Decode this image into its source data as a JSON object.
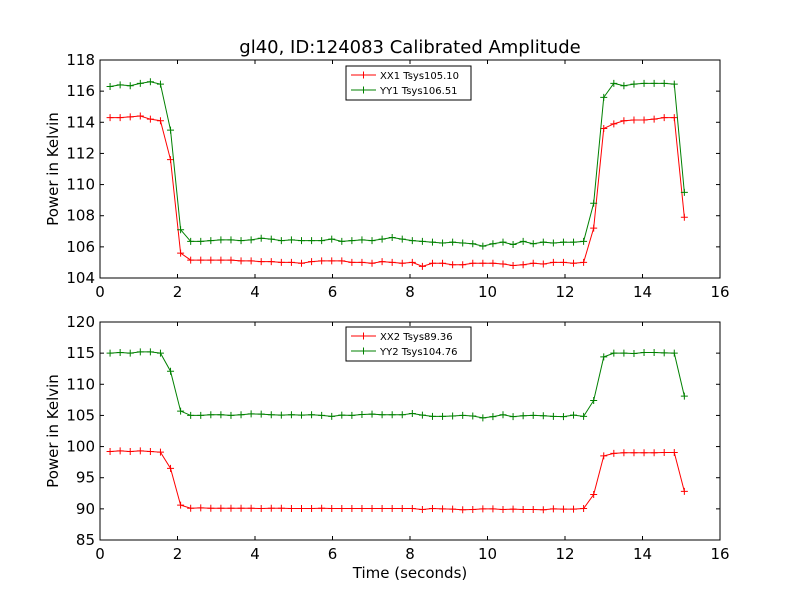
{
  "chart_data": [
    {
      "type": "line",
      "title": "gl40, ID:124083 Calibrated Amplitude",
      "xlabel": "",
      "ylabel": "Power in Kelvin",
      "xlim": [
        0,
        16
      ],
      "ylim": [
        104,
        118
      ],
      "xticks": [
        "0",
        "2",
        "4",
        "6",
        "8",
        "10",
        "12",
        "14",
        "16"
      ],
      "yticks": [
        "104",
        "106",
        "108",
        "110",
        "112",
        "114",
        "116",
        "118"
      ],
      "legend_position": "top-center",
      "x": [
        0.26,
        0.52,
        0.78,
        1.04,
        1.3,
        1.56,
        1.82,
        2.08,
        2.34,
        2.6,
        2.86,
        3.12,
        3.38,
        3.64,
        3.9,
        4.16,
        4.42,
        4.68,
        4.94,
        5.2,
        5.46,
        5.72,
        5.98,
        6.24,
        6.5,
        6.76,
        7.02,
        7.28,
        7.54,
        7.8,
        8.06,
        8.32,
        8.58,
        8.84,
        9.1,
        9.36,
        9.62,
        9.88,
        10.14,
        10.4,
        10.66,
        10.92,
        11.18,
        11.44,
        11.7,
        11.96,
        12.22,
        12.48,
        12.74,
        13.0,
        13.26,
        13.52,
        13.78,
        14.04,
        14.3,
        14.56,
        14.82,
        15.08
      ],
      "series": [
        {
          "name": "XX1 Tsys105.10",
          "color": "#ff0000",
          "values": [
            114.3,
            114.3,
            114.35,
            114.4,
            114.2,
            114.1,
            111.6,
            105.6,
            105.15,
            105.15,
            105.15,
            105.15,
            105.15,
            105.1,
            105.1,
            105.05,
            105.05,
            105.0,
            105.0,
            104.95,
            105.05,
            105.1,
            105.1,
            105.1,
            105.0,
            105.0,
            104.95,
            105.05,
            105.0,
            104.95,
            105.0,
            104.75,
            104.95,
            104.95,
            104.85,
            104.85,
            104.95,
            104.95,
            104.95,
            104.9,
            104.8,
            104.85,
            104.95,
            104.9,
            105.0,
            105.0,
            104.95,
            105.0,
            107.2,
            113.6,
            113.9,
            114.1,
            114.15,
            114.15,
            114.2,
            114.3,
            114.3,
            107.9
          ]
        },
        {
          "name": "YY1 Tsys106.51",
          "color": "#008000",
          "values": [
            116.3,
            116.4,
            116.35,
            116.5,
            116.6,
            116.45,
            113.5,
            107.1,
            106.35,
            106.35,
            106.4,
            106.45,
            106.45,
            106.4,
            106.45,
            106.55,
            106.5,
            106.4,
            106.45,
            106.4,
            106.4,
            106.4,
            106.5,
            106.35,
            106.4,
            106.45,
            106.4,
            106.5,
            106.6,
            106.5,
            106.4,
            106.35,
            106.3,
            106.25,
            106.3,
            106.25,
            106.2,
            106.05,
            106.2,
            106.3,
            106.15,
            106.35,
            106.2,
            106.3,
            106.25,
            106.3,
            106.3,
            106.35,
            108.8,
            115.6,
            116.5,
            116.35,
            116.45,
            116.5,
            116.5,
            116.5,
            116.45,
            109.5
          ]
        }
      ]
    },
    {
      "type": "line",
      "title": "",
      "xlabel": "Time (seconds)",
      "ylabel": "Power in Kelvin",
      "xlim": [
        0,
        16
      ],
      "ylim": [
        85,
        120
      ],
      "xticks": [
        "0",
        "2",
        "4",
        "6",
        "8",
        "10",
        "12",
        "14",
        "16"
      ],
      "yticks": [
        "85",
        "90",
        "95",
        "100",
        "105",
        "110",
        "115",
        "120"
      ],
      "legend_position": "top-center",
      "x": [
        0.26,
        0.52,
        0.78,
        1.04,
        1.3,
        1.56,
        1.82,
        2.08,
        2.34,
        2.6,
        2.86,
        3.12,
        3.38,
        3.64,
        3.9,
        4.16,
        4.42,
        4.68,
        4.94,
        5.2,
        5.46,
        5.72,
        5.98,
        6.24,
        6.5,
        6.76,
        7.02,
        7.28,
        7.54,
        7.8,
        8.06,
        8.32,
        8.58,
        8.84,
        9.1,
        9.36,
        9.62,
        9.88,
        10.14,
        10.4,
        10.66,
        10.92,
        11.18,
        11.44,
        11.7,
        11.96,
        12.22,
        12.48,
        12.74,
        13.0,
        13.26,
        13.52,
        13.78,
        14.04,
        14.3,
        14.56,
        14.82,
        15.08
      ],
      "series": [
        {
          "name": "XX2 Tsys89.36",
          "color": "#ff0000",
          "values": [
            99.2,
            99.3,
            99.2,
            99.3,
            99.2,
            99.1,
            96.5,
            90.6,
            90.1,
            90.15,
            90.1,
            90.1,
            90.1,
            90.1,
            90.1,
            90.05,
            90.1,
            90.1,
            90.05,
            90.05,
            90.05,
            90.1,
            90.05,
            90.05,
            90.05,
            90.05,
            90.05,
            90.05,
            90.05,
            90.05,
            90.05,
            89.9,
            90.05,
            90.0,
            89.95,
            89.85,
            89.9,
            90.0,
            90.0,
            89.9,
            89.95,
            89.9,
            89.9,
            89.85,
            90.0,
            89.95,
            89.95,
            90.05,
            92.3,
            98.5,
            98.9,
            99.0,
            99.0,
            99.0,
            99.0,
            99.05,
            99.05,
            92.8
          ]
        },
        {
          "name": "YY2 Tsys104.76",
          "color": "#008000",
          "values": [
            115.0,
            115.1,
            115.0,
            115.2,
            115.2,
            115.0,
            112.1,
            105.7,
            105.0,
            105.0,
            105.1,
            105.1,
            105.0,
            105.1,
            105.25,
            105.2,
            105.1,
            105.05,
            105.1,
            105.05,
            105.1,
            105.0,
            104.85,
            105.05,
            105.0,
            105.15,
            105.2,
            105.1,
            105.1,
            105.1,
            105.3,
            105.05,
            104.85,
            104.85,
            104.9,
            105.0,
            104.9,
            104.6,
            104.8,
            105.1,
            104.8,
            104.95,
            105.0,
            104.95,
            104.85,
            104.8,
            105.05,
            104.85,
            107.4,
            114.4,
            115.0,
            115.0,
            114.95,
            115.1,
            115.1,
            115.05,
            115.0,
            108.1
          ]
        }
      ]
    }
  ]
}
